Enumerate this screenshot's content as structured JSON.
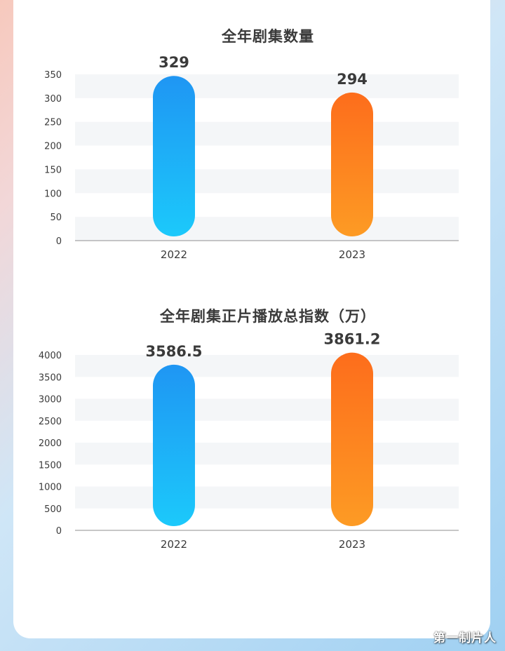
{
  "watermark": "第一制片人",
  "colors": {
    "blue_top": "#1f96f3",
    "blue_bottom": "#1cc9fb",
    "orange_top": "#fd6d1c",
    "orange_bottom": "#fd9b24",
    "stripe": "#f4f6f8",
    "axis": "#8f8f8f",
    "text": "#3a3a3a"
  },
  "chart_data": [
    {
      "type": "bar",
      "title": "全年剧集数量",
      "xlabel": "",
      "ylabel": "",
      "categories": [
        "2022",
        "2023"
      ],
      "values": [
        329,
        294
      ],
      "value_labels": [
        "329",
        "294"
      ],
      "ylim": [
        0,
        350
      ],
      "yticks": [
        0,
        50,
        100,
        150,
        200,
        250,
        300,
        350
      ],
      "grid": "alternating-bands",
      "bar_colors": [
        "blue",
        "orange"
      ]
    },
    {
      "type": "bar",
      "title": "全年剧集正片播放总指数（万）",
      "xlabel": "",
      "ylabel": "",
      "categories": [
        "2022",
        "2023"
      ],
      "values": [
        3586.5,
        3861.2
      ],
      "value_labels": [
        "3586.5",
        "3861.2"
      ],
      "ylim": [
        0,
        4000
      ],
      "yticks": [
        0,
        500,
        1000,
        1500,
        2000,
        2500,
        3000,
        3500,
        4000
      ],
      "grid": "alternating-bands",
      "bar_colors": [
        "blue",
        "orange"
      ]
    }
  ]
}
